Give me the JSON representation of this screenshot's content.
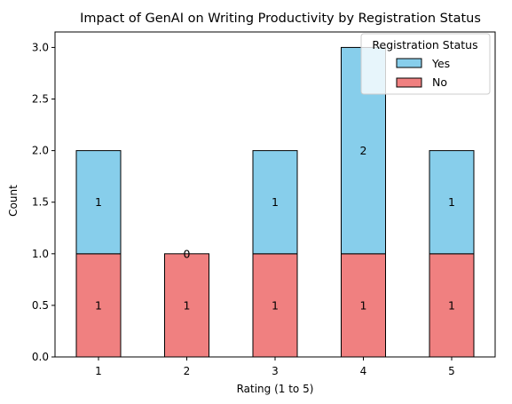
{
  "chart_data": {
    "type": "bar",
    "stacked": true,
    "title": "Impact of GenAI on Writing Productivity by Registration Status",
    "xlabel": "Rating (1 to 5)",
    "ylabel": "Count",
    "categories": [
      "1",
      "2",
      "3",
      "4",
      "5"
    ],
    "ylim": [
      0,
      3.15
    ],
    "yticks": [
      "0.0",
      "0.5",
      "1.0",
      "1.5",
      "2.0",
      "2.5",
      "3.0"
    ],
    "series": [
      {
        "name": "No",
        "values": [
          1,
          1,
          1,
          1,
          1
        ],
        "color": "#f08080"
      },
      {
        "name": "Yes",
        "values": [
          1,
          0,
          1,
          2,
          1
        ],
        "color": "#87ceeb"
      }
    ],
    "legend": {
      "title": "Registration Status",
      "position": "top-right",
      "entries": [
        "Yes",
        "No"
      ]
    },
    "grid": false
  }
}
